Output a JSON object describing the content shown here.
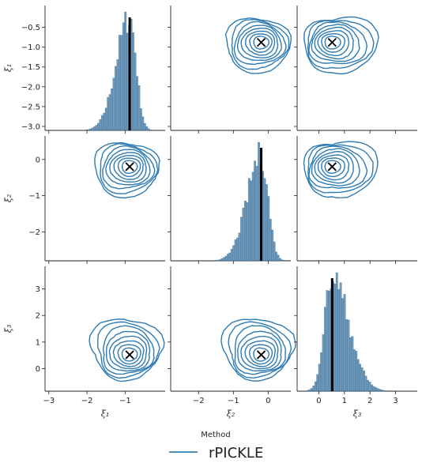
{
  "chart_data": {
    "type": "pairplot",
    "variables": [
      "ξ1",
      "ξ2",
      "ξ3"
    ],
    "axis_labels": {
      "x": [
        "ξ₁",
        "ξ₂",
        "ξ₃"
      ],
      "y": [
        "ξ₁",
        "ξ₂",
        "ξ₃"
      ]
    },
    "ranges": [
      [
        -3.1,
        0.05
      ],
      [
        -2.8,
        0.65
      ],
      [
        -0.85,
        3.85
      ]
    ],
    "ticks": [
      [
        -3.0,
        -2.5,
        -2.0,
        -1.5,
        -1.0,
        -0.5
      ],
      [
        -2,
        -1,
        0
      ],
      [
        0,
        1,
        2,
        3
      ]
    ],
    "x_ticks": [
      [
        -3,
        -2,
        -1
      ],
      [
        -2,
        -1,
        0
      ],
      [
        0,
        1,
        2,
        3
      ]
    ],
    "y_tick_labels": [
      [
        "−3.0",
        "−2.5",
        "−2.0",
        "−1.5",
        "−1.0",
        "−0.5"
      ],
      [
        "−2",
        "−1",
        "0"
      ],
      [
        "0",
        "1",
        "2",
        "3"
      ]
    ],
    "x_tick_labels": [
      [
        "−3",
        "−2",
        "−1"
      ],
      [
        "−2",
        "−1",
        "0"
      ],
      [
        "0",
        "1",
        "2",
        "3"
      ]
    ],
    "true_values": [
      -0.88,
      -0.2,
      0.52
    ],
    "diagonal": "histogram",
    "off_diagonal": "kde contours",
    "histogram_mode": [
      -0.88,
      -0.2,
      0.52
    ],
    "histogram_spread": [
      {
        "left": 0.35,
        "right": 0.17
      },
      {
        "left": 0.4,
        "right": 0.2
      },
      {
        "left": 0.3,
        "right": 0.65
      }
    ],
    "series_color": "#2e7bb4",
    "hist_color": "#4b7fa9",
    "marker": "x",
    "legend": {
      "title": "Method",
      "entries": [
        "rPICKLE"
      ],
      "placement": "bottom-center"
    }
  }
}
